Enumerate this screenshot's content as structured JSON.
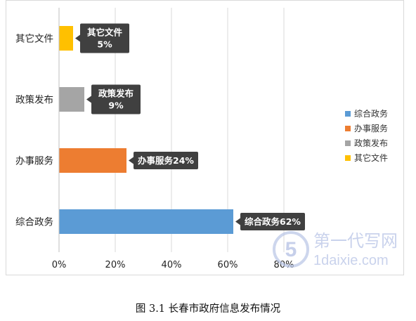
{
  "chart_data": {
    "type": "bar",
    "orientation": "horizontal",
    "categories": [
      "其它文件",
      "政策发布",
      "办事服务",
      "综合政务"
    ],
    "values": [
      5,
      9,
      24,
      62
    ],
    "data_labels": [
      [
        "其它文件",
        "5%"
      ],
      [
        "政策发布",
        "9%"
      ],
      [
        "办事服务24%"
      ],
      [
        "综合政务62%"
      ]
    ],
    "colors": [
      "#FFC000",
      "#A5A5A5",
      "#ED7D31",
      "#5B9BD5"
    ],
    "x_ticks": [
      "0%",
      "20%",
      "40%",
      "60%",
      "80%"
    ],
    "xlim": [
      0,
      80
    ],
    "grid": true,
    "legend": {
      "position": "right",
      "entries": [
        {
          "label": "综合政务",
          "color": "#5B9BD5"
        },
        {
          "label": "办事服务",
          "color": "#ED7D31"
        },
        {
          "label": "政策发布",
          "color": "#A5A5A5"
        },
        {
          "label": "其它文件",
          "color": "#FFC000"
        }
      ]
    }
  },
  "caption": "图 3.1  长春市政府信息发布情况",
  "watermark": {
    "logo_text": "5",
    "brand": "第一代写网",
    "url": "1daixie.com"
  }
}
